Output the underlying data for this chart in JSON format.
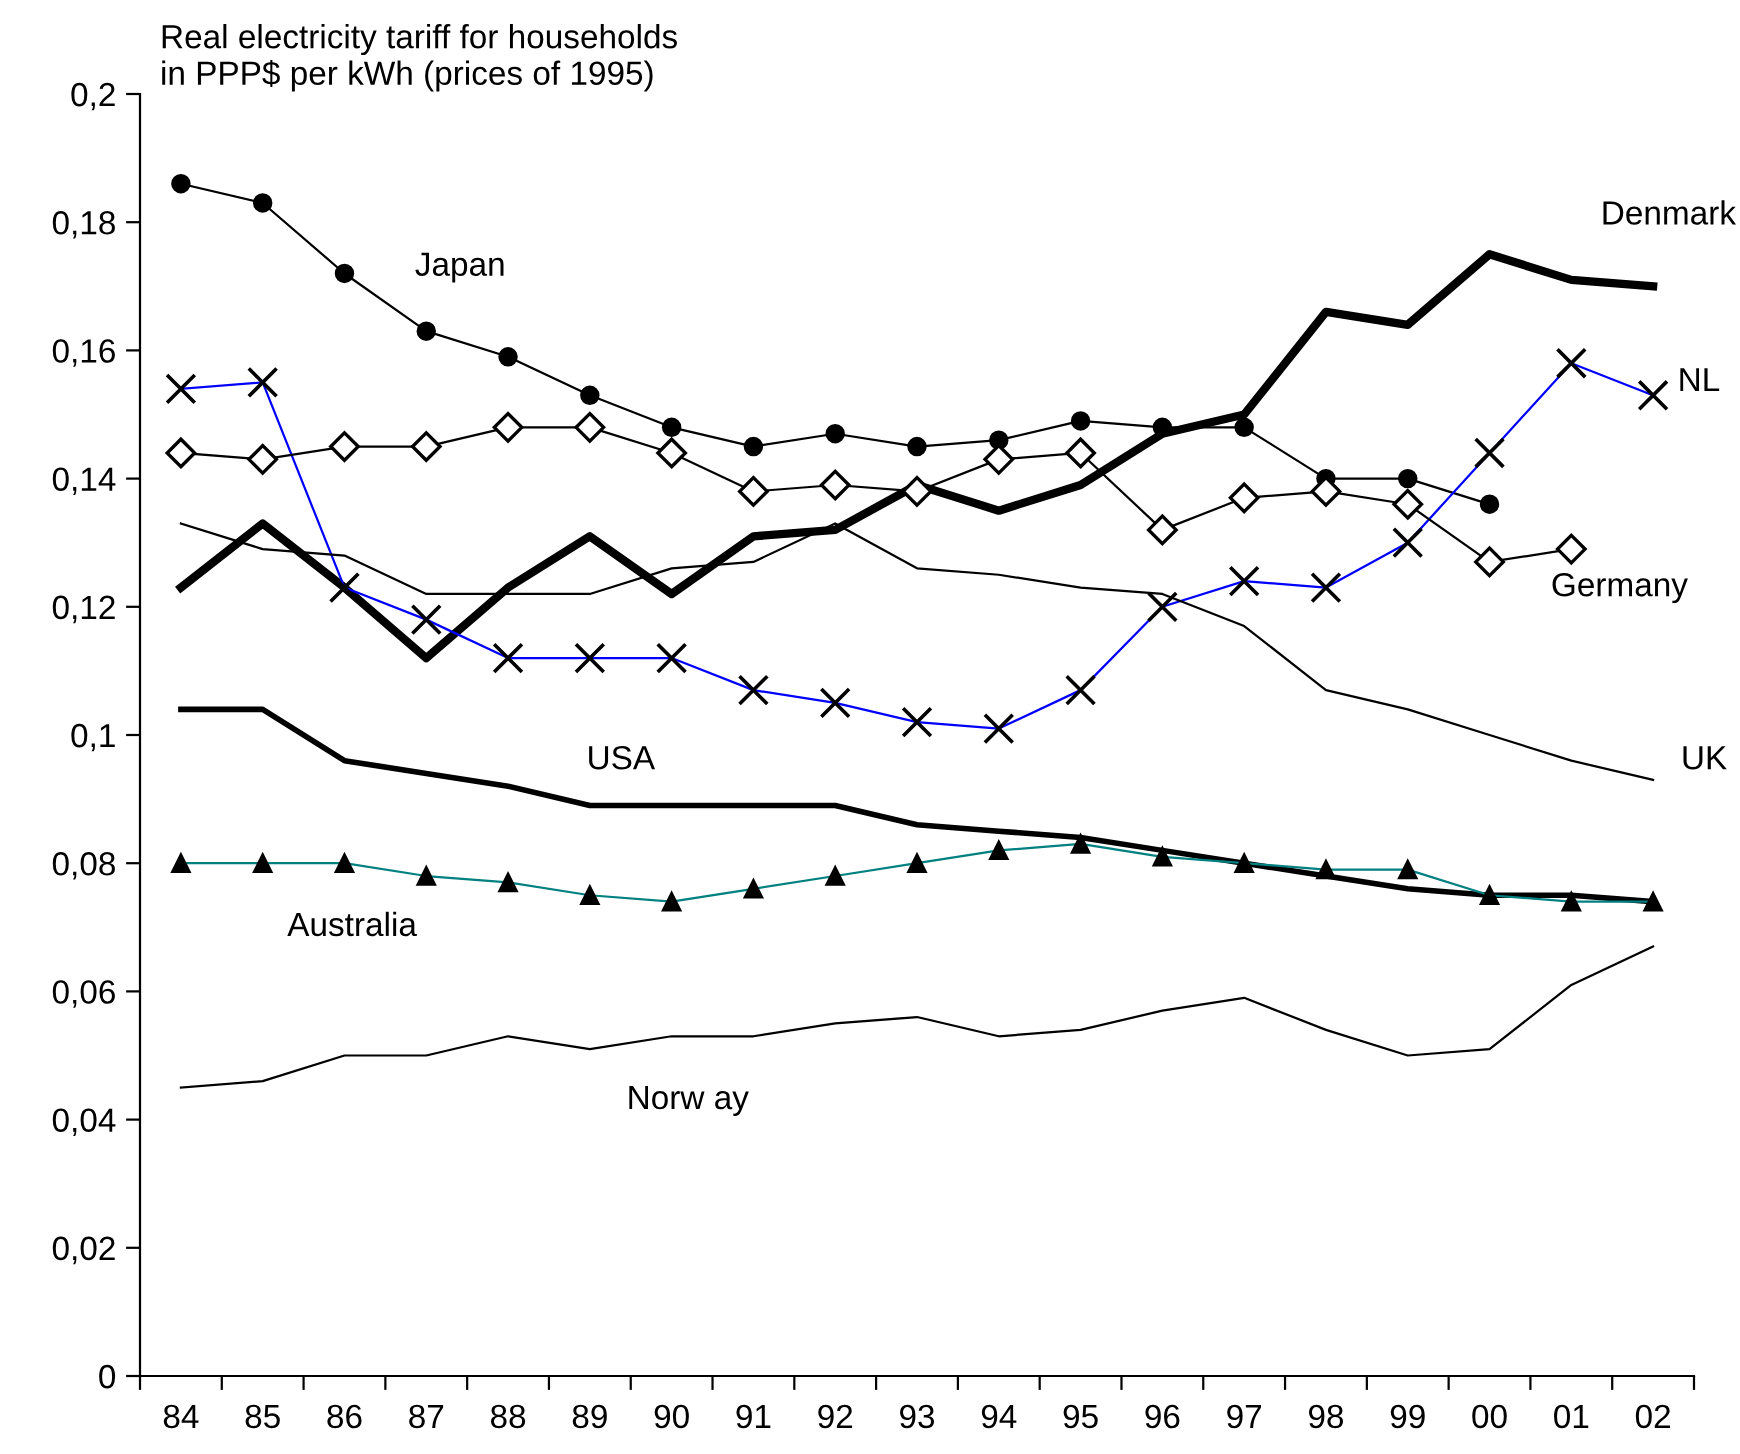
{
  "chart_data": {
    "type": "line",
    "title": "Real electricity tariff for households\nin PPP$ per kWh (prices of 1995)",
    "categories": [
      "84",
      "85",
      "86",
      "87",
      "88",
      "89",
      "90",
      "91",
      "92",
      "93",
      "94",
      "95",
      "96",
      "97",
      "98",
      "99",
      "00",
      "01",
      "02"
    ],
    "ylim": [
      0,
      0.2
    ],
    "yticks": [
      0,
      {
        "value": 0.02,
        "label": "0,02"
      },
      {
        "value": 0.04,
        "label": "0,04"
      },
      {
        "value": 0.06,
        "label": "0,06"
      },
      {
        "value": 0.08,
        "label": "0,08"
      },
      {
        "value": 0.1,
        "label": "0,1"
      },
      {
        "value": 0.12,
        "label": "0,12"
      },
      {
        "value": 0.14,
        "label": "0,14"
      },
      {
        "value": 0.16,
        "label": "0,16"
      },
      {
        "value": 0.18,
        "label": "0,18"
      },
      {
        "value": 0.2,
        "label": "0,2"
      }
    ],
    "grid": false,
    "legend": false,
    "series": [
      {
        "name": "Japan",
        "color": "#000000",
        "marker": "circle",
        "values": [
          0.186,
          0.183,
          0.172,
          0.163,
          0.159,
          0.153,
          0.148,
          0.145,
          0.147,
          0.145,
          0.146,
          0.149,
          0.148,
          0.148,
          0.14,
          0.14,
          0.136,
          null,
          null
        ]
      },
      {
        "name": "Denmark",
        "color": "#000000",
        "marker": "none",
        "values": [
          0.123,
          0.133,
          0.123,
          0.112,
          0.123,
          0.131,
          0.122,
          0.131,
          0.132,
          0.139,
          0.135,
          0.139,
          0.147,
          0.15,
          0.166,
          0.164,
          0.175,
          0.171,
          0.17
        ]
      },
      {
        "name": "NL",
        "color": "#0000ff",
        "marker": "cross",
        "values": [
          0.154,
          0.155,
          0.123,
          0.118,
          0.112,
          0.112,
          0.112,
          0.107,
          0.105,
          0.102,
          0.101,
          0.107,
          0.12,
          0.124,
          0.123,
          0.13,
          0.144,
          0.158,
          0.153
        ]
      },
      {
        "name": "Germany",
        "color": "#000000",
        "marker": "diamond",
        "values": [
          0.144,
          0.143,
          0.145,
          0.145,
          0.148,
          0.148,
          0.144,
          0.138,
          0.139,
          0.138,
          0.143,
          0.144,
          0.132,
          0.137,
          0.138,
          0.136,
          0.127,
          0.129,
          null
        ]
      },
      {
        "name": "UK",
        "color": "#000000",
        "marker": "none",
        "values": [
          0.133,
          0.129,
          0.128,
          0.122,
          0.122,
          0.122,
          0.126,
          0.127,
          0.133,
          0.126,
          0.125,
          0.123,
          0.122,
          0.117,
          0.107,
          0.104,
          0.1,
          0.096,
          0.093
        ]
      },
      {
        "name": "USA",
        "color": "#000000",
        "marker": "none",
        "values": [
          0.104,
          0.104,
          0.096,
          0.094,
          0.092,
          0.089,
          0.089,
          0.089,
          0.089,
          0.086,
          0.085,
          0.084,
          0.082,
          0.08,
          0.078,
          0.076,
          0.075,
          0.075,
          0.074
        ]
      },
      {
        "name": "Australia",
        "color": "#008080",
        "marker": "triangle",
        "values": [
          0.08,
          0.08,
          0.08,
          0.078,
          0.077,
          0.075,
          0.074,
          0.076,
          0.078,
          0.08,
          0.082,
          0.083,
          0.081,
          0.08,
          0.079,
          0.079,
          0.075,
          0.074,
          0.074
        ]
      },
      {
        "name": "Norw ay",
        "color": "#000000",
        "marker": "none",
        "values": [
          0.045,
          0.046,
          0.05,
          0.05,
          0.053,
          0.051,
          0.053,
          0.053,
          0.055,
          0.056,
          0.053,
          0.054,
          0.057,
          0.059,
          0.054,
          0.05,
          0.051,
          0.061,
          0.067
        ]
      }
    ]
  }
}
